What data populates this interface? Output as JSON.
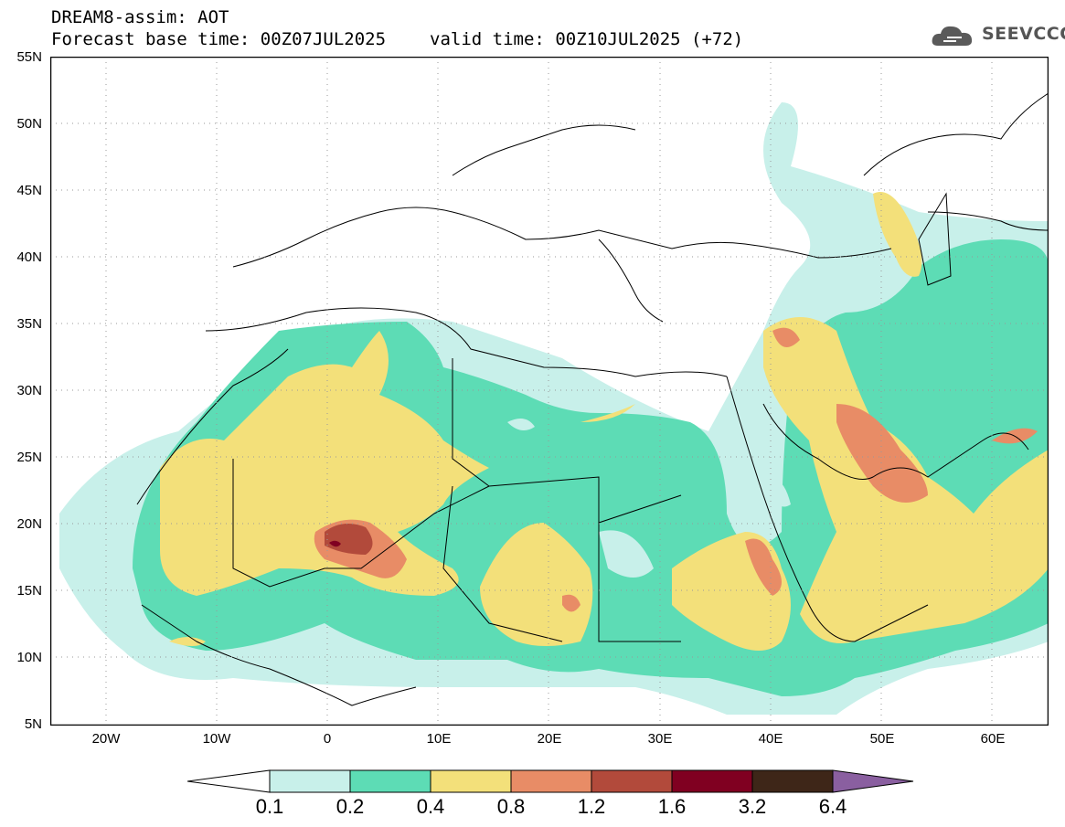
{
  "header": {
    "model_line": "DREAM8-assim: AOT",
    "base_time": "Forecast base time: 00Z07JUL2025",
    "valid_time": "valid time: 00Z10JUL2025 (+72)"
  },
  "logo": {
    "text": "SEEVCCC",
    "icon": "cloud-icon"
  },
  "map": {
    "lat_labels": [
      "55N",
      "50N",
      "45N",
      "40N",
      "35N",
      "30N",
      "25N",
      "20N",
      "15N",
      "10N",
      "5N"
    ],
    "lon_labels": [
      "20W",
      "10W",
      "0",
      "10E",
      "20E",
      "30E",
      "40E",
      "50E",
      "60E"
    ],
    "lon_range": [
      -25,
      65
    ],
    "lat_range": [
      5,
      55
    ]
  },
  "colorbar": {
    "labels": [
      "0.1",
      "0.2",
      "0.4",
      "0.8",
      "1.2",
      "1.6",
      "3.2",
      "6.4"
    ],
    "colors": [
      "#c8f0ea",
      "#5ddcb5",
      "#f3e07a",
      "#e88c66",
      "#b24a3b",
      "#800021",
      "#3e2618",
      "#8a5fa0"
    ]
  },
  "colors": {
    "c01": "#c8f0ea",
    "c02": "#5ddcb5",
    "c04": "#f3e07a",
    "c08": "#e88c66",
    "c12": "#b24a3b",
    "c16": "#800021",
    "border": "#000000"
  }
}
